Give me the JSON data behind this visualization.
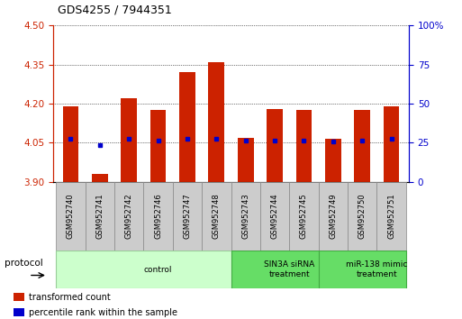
{
  "title": "GDS4255 / 7944351",
  "samples": [
    "GSM952740",
    "GSM952741",
    "GSM952742",
    "GSM952746",
    "GSM952747",
    "GSM952748",
    "GSM952743",
    "GSM952744",
    "GSM952745",
    "GSM952749",
    "GSM952750",
    "GSM952751"
  ],
  "bar_tops": [
    4.19,
    3.93,
    4.22,
    4.175,
    4.32,
    4.36,
    4.07,
    4.18,
    4.175,
    4.065,
    4.175,
    4.19
  ],
  "bar_bottoms": [
    3.9,
    3.9,
    3.9,
    3.9,
    3.9,
    3.9,
    3.9,
    3.9,
    3.9,
    3.9,
    3.9,
    3.9
  ],
  "percentile_values": [
    4.065,
    4.04,
    4.065,
    4.06,
    4.065,
    4.065,
    4.06,
    4.06,
    4.06,
    4.055,
    4.06,
    4.065
  ],
  "ylim_left": [
    3.9,
    4.5
  ],
  "yticks_left": [
    3.9,
    4.05,
    4.2,
    4.35,
    4.5
  ],
  "yticks_right": [
    0,
    25,
    50,
    75,
    100
  ],
  "ylim_right": [
    0,
    100
  ],
  "bar_color": "#cc2200",
  "percentile_color": "#0000cc",
  "grid_color": "#000000",
  "groups": [
    {
      "label": "control",
      "start": 0,
      "end": 6,
      "color": "#ccffcc",
      "edge_color": "#99cc99"
    },
    {
      "label": "SIN3A siRNA\ntreatment",
      "start": 6,
      "end": 9,
      "color": "#66dd66",
      "edge_color": "#44aa44"
    },
    {
      "label": "miR-138 mimic\ntreatment",
      "start": 9,
      "end": 12,
      "color": "#66dd66",
      "edge_color": "#44aa44"
    }
  ],
  "legend_items": [
    {
      "label": "transformed count",
      "color": "#cc2200"
    },
    {
      "label": "percentile rank within the sample",
      "color": "#0000cc"
    }
  ],
  "protocol_label": "protocol",
  "left_axis_color": "#cc2200",
  "right_axis_color": "#0000cc",
  "tick_label_color_left": "#cc2200",
  "tick_label_color_right": "#0000cc"
}
